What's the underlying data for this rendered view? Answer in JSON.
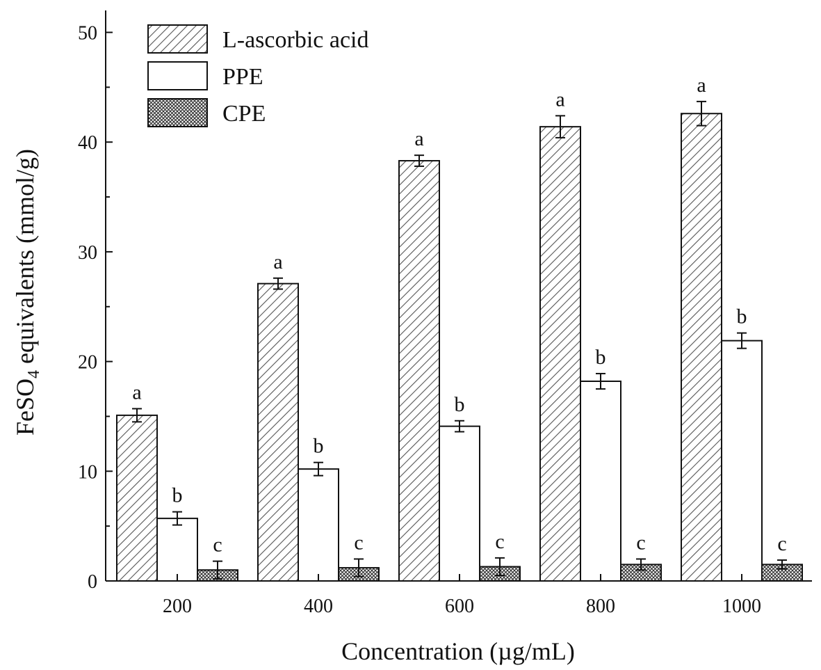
{
  "chart_data": {
    "type": "bar",
    "title": "",
    "xlabel": "Concentration (µg/mL)",
    "ylabel": {
      "prefix": "FeSO",
      "subscript": "4",
      "suffix": " equivalents (mmol/g)"
    },
    "ylim": [
      0,
      52
    ],
    "yticks": [
      0,
      10,
      20,
      30,
      40,
      50
    ],
    "categories": [
      "200",
      "400",
      "600",
      "800",
      "1000"
    ],
    "legend_position": "top-left",
    "grid": false,
    "series": [
      {
        "name": "L-ascorbic acid",
        "pattern": "diagonal-hatch",
        "values": [
          15.1,
          27.1,
          38.3,
          41.4,
          42.6
        ],
        "errors": [
          0.6,
          0.5,
          0.5,
          1.0,
          1.1
        ],
        "labels": [
          "a",
          "a",
          "a",
          "a",
          "a"
        ]
      },
      {
        "name": "PPE",
        "pattern": "white",
        "values": [
          5.7,
          10.2,
          14.1,
          18.2,
          21.9
        ],
        "errors": [
          0.6,
          0.6,
          0.5,
          0.7,
          0.7
        ],
        "labels": [
          "b",
          "b",
          "b",
          "b",
          "b"
        ]
      },
      {
        "name": "CPE",
        "pattern": "crosshatch",
        "values": [
          1.0,
          1.2,
          1.3,
          1.5,
          1.5
        ],
        "errors": [
          0.8,
          0.8,
          0.8,
          0.5,
          0.4
        ],
        "labels": [
          "c",
          "c",
          "c",
          "c",
          "c"
        ]
      }
    ]
  }
}
